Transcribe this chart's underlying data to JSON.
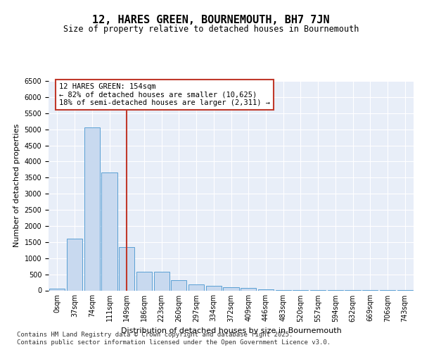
{
  "title1": "12, HARES GREEN, BOURNEMOUTH, BH7 7JN",
  "title2": "Size of property relative to detached houses in Bournemouth",
  "xlabel": "Distribution of detached houses by size in Bournemouth",
  "ylabel": "Number of detached properties",
  "categories": [
    "0sqm",
    "37sqm",
    "74sqm",
    "111sqm",
    "149sqm",
    "186sqm",
    "223sqm",
    "260sqm",
    "297sqm",
    "334sqm",
    "372sqm",
    "409sqm",
    "446sqm",
    "483sqm",
    "520sqm",
    "557sqm",
    "594sqm",
    "632sqm",
    "669sqm",
    "706sqm",
    "743sqm"
  ],
  "values": [
    50,
    1600,
    5050,
    3650,
    1350,
    575,
    575,
    325,
    175,
    150,
    100,
    75,
    30,
    15,
    10,
    5,
    5,
    3,
    2,
    1,
    1
  ],
  "highlight_index": 4,
  "bar_color_normal": "#c8d9ef",
  "bar_edge_color": "#5a9fd4",
  "vline_color": "#c0392b",
  "annotation_text": "12 HARES GREEN: 154sqm\n← 82% of detached houses are smaller (10,625)\n18% of semi-detached houses are larger (2,311) →",
  "annotation_box_color": "white",
  "annotation_box_edge_color": "#c0392b",
  "ylim": [
    0,
    6500
  ],
  "yticks": [
    0,
    500,
    1000,
    1500,
    2000,
    2500,
    3000,
    3500,
    4000,
    4500,
    5000,
    5500,
    6000,
    6500
  ],
  "background_color": "#e8eef8",
  "footer_line1": "Contains HM Land Registry data © Crown copyright and database right 2025.",
  "footer_line2": "Contains public sector information licensed under the Open Government Licence v3.0.",
  "title1_fontsize": 11,
  "title2_fontsize": 8.5,
  "axis_fontsize": 8,
  "tick_fontsize": 7,
  "footer_fontsize": 6.5,
  "annotation_fontsize": 7.5
}
